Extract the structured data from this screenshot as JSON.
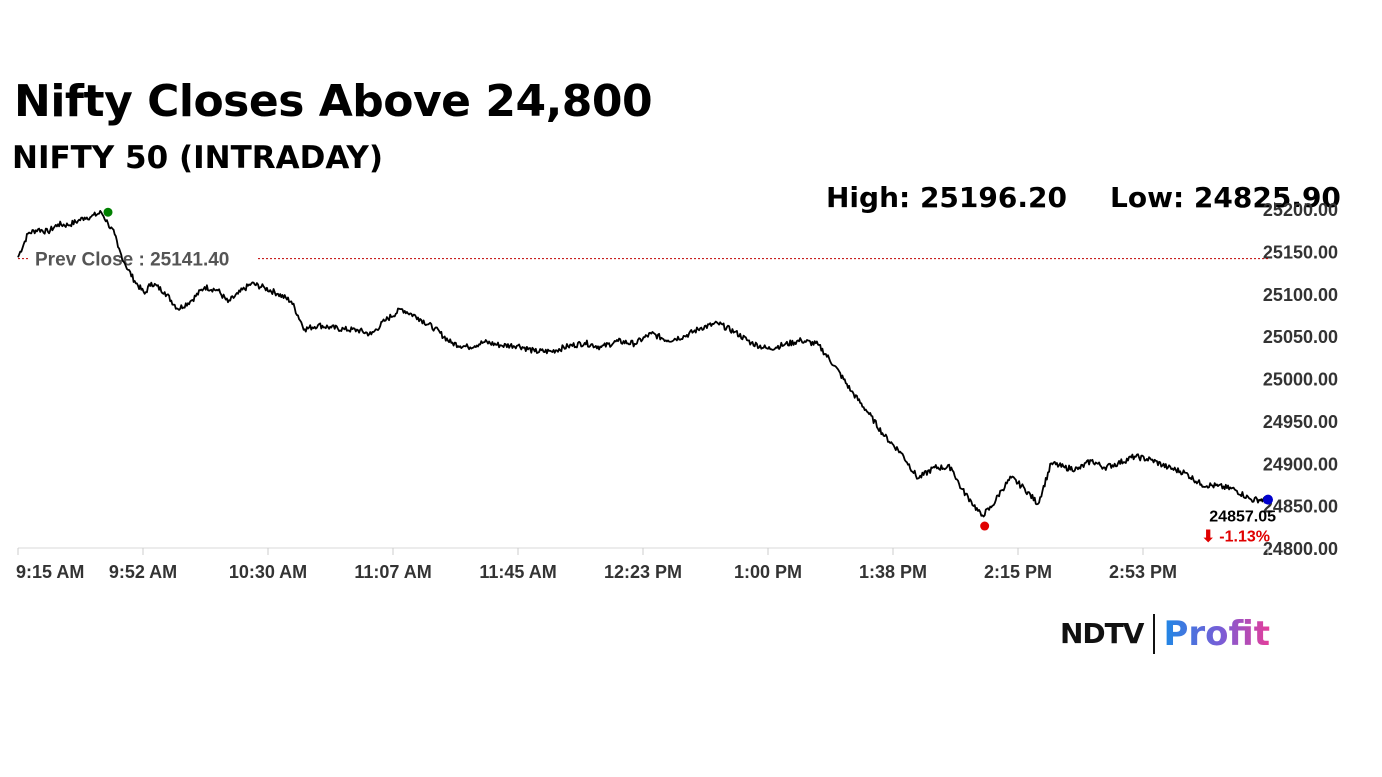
{
  "header": {
    "title": "Nifty Closes Above 24,800",
    "subtitle": "NIFTY 50 (INTRADAY)",
    "high_text": "High: 25196.20",
    "low_text": "Low: 24825.90"
  },
  "chart_data": {
    "type": "line",
    "title": "Nifty Closes Above 24,800",
    "subtitle": "NIFTY 50 (INTRADAY)",
    "x_ticks": [
      "9:15 AM",
      "9:52 AM",
      "10:30 AM",
      "11:07 AM",
      "11:45 AM",
      "12:23 PM",
      "1:00 PM",
      "1:38 PM",
      "2:15 PM",
      "2:53 PM"
    ],
    "y_ticks": [
      "25200.00",
      "25150.00",
      "25100.00",
      "25050.00",
      "25000.00",
      "24950.00",
      "24900.00",
      "24850.00",
      "24800.00"
    ],
    "ylim": [
      24800,
      25200
    ],
    "x_range_minutes": [
      0,
      375
    ],
    "series": [
      {
        "values_x_minutes": [
          0,
          3,
          6,
          9,
          12,
          15,
          18,
          20,
          22,
          25,
          27,
          29,
          30,
          32,
          35,
          38,
          40,
          44,
          48,
          52,
          56,
          60,
          63,
          66,
          70,
          74,
          78,
          82,
          86,
          90,
          94,
          98,
          102,
          106,
          110,
          115,
          120,
          125,
          130,
          135,
          140,
          145,
          150,
          155,
          160,
          165,
          170,
          175,
          180,
          185,
          190,
          195,
          200,
          205,
          210,
          215,
          220,
          225,
          230,
          235,
          240,
          245,
          250,
          255,
          260,
          265,
          270,
          275,
          280,
          283,
          286,
          289,
          292,
          295,
          298,
          302,
          306,
          310,
          314,
          318,
          322,
          326,
          330,
          335,
          340,
          345,
          350,
          355,
          360,
          365,
          370,
          375
        ],
        "values": [
          25143,
          25171,
          25176,
          25173,
          25182,
          25181,
          25186,
          25190,
          25191,
          25196,
          25183,
          25170,
          25155,
          25136,
          25115,
          25100,
          25113,
          25102,
          25082,
          25092,
          25108,
          25104,
          25090,
          25100,
          25112,
          25107,
          25100,
          25091,
          25058,
          25063,
          25060,
          25058,
          25057,
          25052,
          25068,
          25082,
          25072,
          25059,
          25042,
          25037,
          25043,
          25039,
          25039,
          25032,
          25032,
          25038,
          25042,
          25037,
          25044,
          25041,
          25053,
          25045,
          25050,
          25060,
          25065,
          25055,
          25042,
          25035,
          25040,
          25045,
          25040,
          25015,
          24985,
          24960,
          24932,
          24912,
          24882,
          24895,
          24895,
          24870,
          24855,
          24838,
          24848,
          24868,
          24883,
          24870,
          24852,
          24900,
          24895,
          24893,
          24903,
          24895,
          24900,
          24908,
          24904,
          24895,
          24889,
          24875,
          24873,
          24869,
          24857,
          24857
        ]
      }
    ],
    "prev_close_label": "Prev Close : 25141.40",
    "prev_close_value": 25141.4,
    "high": {
      "label": "High: 25196.20",
      "value": 25196.2,
      "x_minutes": 27
    },
    "low": {
      "label": "Low: 24825.90",
      "value": 24825.9,
      "x_minutes": 290
    },
    "last": {
      "value_label": "24857.05",
      "change_label": "⬇ -1.13%",
      "value": 24857.05,
      "x_minutes": 375
    },
    "colors": {
      "line": "#000000",
      "prev_close": "#c00000",
      "high_dot": "#008000",
      "low_dot": "#e00000",
      "last_dot": "#0000cc",
      "change": "#e00000"
    },
    "grid": false
  },
  "brand": {
    "ndtv": "NDTV",
    "profit": "Profit"
  }
}
